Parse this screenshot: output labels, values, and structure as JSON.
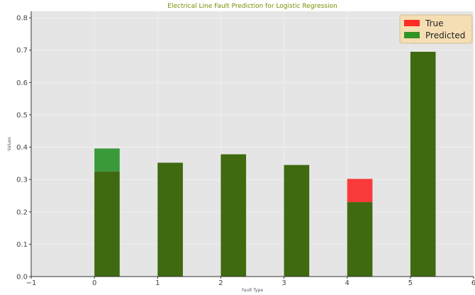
{
  "chart_data": {
    "type": "bar",
    "title": "Electrical Line Fault Prediction for Logistic Regression",
    "xlabel": "Fault Type",
    "ylabel": "Values",
    "x": [
      0,
      1,
      2,
      3,
      4,
      5
    ],
    "series": [
      {
        "name": "True",
        "color": "#ff0000",
        "values": [
          0.325,
          0.352,
          0.378,
          0.345,
          0.302,
          0.695
        ]
      },
      {
        "name": "Predicted",
        "color": "#008000",
        "values": [
          0.396,
          0.352,
          0.378,
          0.345,
          0.23,
          0.695
        ]
      }
    ],
    "overlap_color": "#3f6a10",
    "bar_width": 0.4,
    "xlim": [
      -1,
      6
    ],
    "ylim": [
      0,
      0.82
    ],
    "xticks": [
      -1,
      0,
      1,
      2,
      3,
      4,
      5,
      6
    ],
    "yticks": [
      0.0,
      0.1,
      0.2,
      0.3,
      0.4,
      0.5,
      0.6,
      0.7,
      0.8
    ],
    "xtick_labels": [
      "−1",
      "0",
      "1",
      "2",
      "3",
      "4",
      "5",
      "6"
    ],
    "ytick_labels": [
      "0.0",
      "0.1",
      "0.2",
      "0.3",
      "0.4",
      "0.5",
      "0.6",
      "0.7",
      "0.8"
    ],
    "grid": true,
    "legend_position": "top-right",
    "colors": {
      "plot_background": "#e5e5e5",
      "grid": "#f2f2f2",
      "title": "#7a8a00",
      "legend_background": "#f5deb3"
    }
  }
}
